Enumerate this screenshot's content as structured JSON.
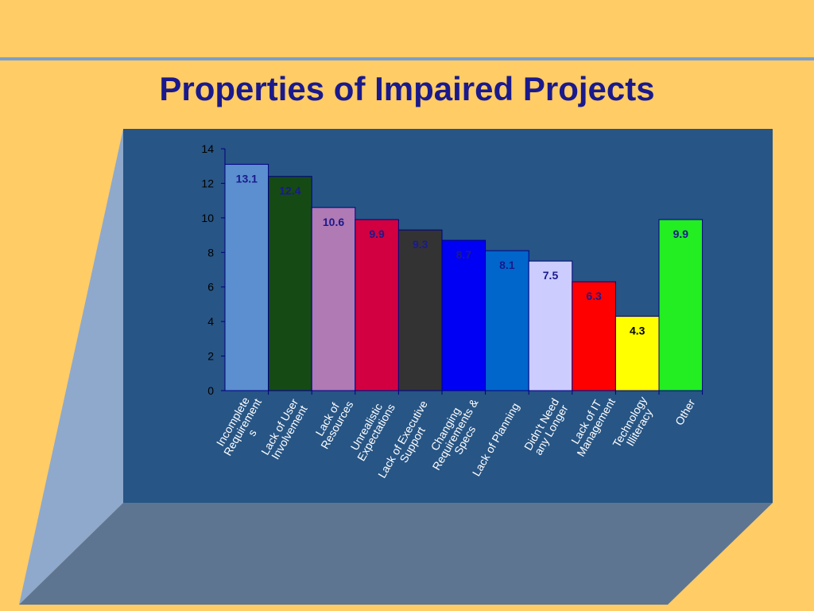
{
  "slide": {
    "title": "Properties of Impaired Projects",
    "colors": {
      "background": "#FFCC66",
      "panel_front": "#275585",
      "panel_left_wall": "#8EA9CC",
      "panel_floor": "#5E7592",
      "title_text": "#1A1A8C",
      "rule_line": "#7B9FCB"
    }
  },
  "chart_data": {
    "type": "bar",
    "title": "",
    "xlabel": "",
    "ylabel": "",
    "ylim": [
      0,
      14
    ],
    "yticks": [
      0,
      2,
      4,
      6,
      8,
      10,
      12,
      14
    ],
    "grid": false,
    "legend": "none",
    "categories": [
      "Incomplete Requirements",
      "Lack of User Involvement",
      "Lack of Resources",
      "Unrealistic Expectations",
      "Lack of Executive Support",
      "Changing Requirements & Specs",
      "Lack of Planning",
      "Didn't Need any Longer",
      "Lack of IT Management",
      "Technology Illiteracy",
      "Other"
    ],
    "category_label_lines": [
      [
        "Incomplete",
        "Requirement",
        "s"
      ],
      [
        "Lack of User",
        "Involvement"
      ],
      [
        "Lack of",
        "Resources"
      ],
      [
        "Unrealistic",
        "Expectations"
      ],
      [
        "Lack of Executive",
        "Support"
      ],
      [
        "Changing",
        "Requirements &",
        "Specs"
      ],
      [
        "Lack of Planning"
      ],
      [
        "Didn't Need",
        "any Longer"
      ],
      [
        "Lack of IT",
        "Management"
      ],
      [
        "Technology",
        "Illiteracy"
      ],
      [
        "Other"
      ]
    ],
    "values": [
      13.1,
      12.4,
      10.6,
      9.9,
      9.3,
      8.7,
      8.1,
      7.5,
      6.3,
      4.3,
      9.9
    ],
    "data_labels": [
      "13.1",
      "12.4",
      "10.6",
      "9.9",
      "9.3",
      "8.7",
      "8.1",
      "7.5",
      "6.3",
      "4.3",
      "9.9"
    ],
    "bar_colors": [
      "#5B8FD0",
      "#154A15",
      "#B07AB5",
      "#D20040",
      "#333333",
      "#0000F5",
      "#0066CC",
      "#CCCCFF",
      "#FF0000",
      "#FFFF00",
      "#22EE22"
    ],
    "label_colors": [
      "#1A1A8C",
      "#1A1A8C",
      "#1A1A8C",
      "#1A1A8C",
      "#1A1A8C",
      "#1A1A8C",
      "#1A1A8C",
      "#1A1A8C",
      "#1A1A8C",
      "#000000",
      "#1A1A8C"
    ]
  }
}
